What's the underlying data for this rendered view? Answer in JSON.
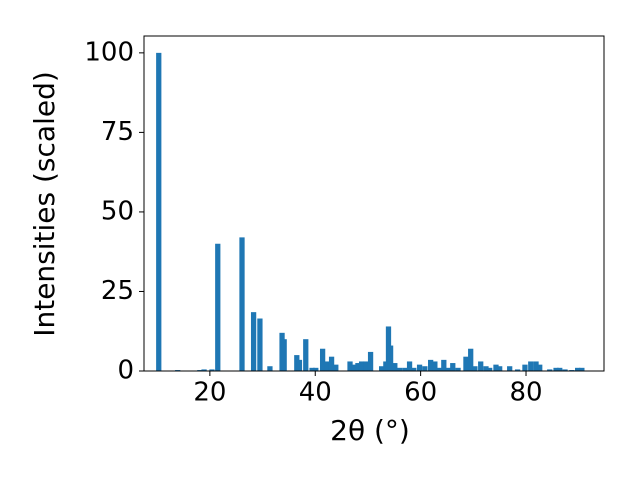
{
  "chart_data": {
    "type": "bar",
    "x_label": "2θ (°)",
    "y_label": "Intensities (scaled)",
    "x": [
      10.3,
      13.9,
      18.1,
      18.9,
      20.4,
      21.5,
      26.1,
      28.3,
      29.5,
      31.4,
      33.7,
      34.1,
      36.5,
      37.0,
      38.2,
      39.4,
      40.1,
      41.4,
      42.2,
      43.1,
      43.9,
      46.6,
      47.3,
      48.1,
      48.8,
      49.6,
      50.5,
      52.6,
      53.4,
      53.9,
      54.3,
      55.1,
      56.0,
      57.0,
      57.9,
      58.7,
      59.8,
      60.8,
      61.9,
      62.7,
      63.6,
      64.4,
      65.2,
      66.1,
      67.1,
      68.6,
      69.5,
      70.3,
      71.4,
      72.4,
      73.1,
      74.3,
      75.0,
      76.9,
      78.4,
      79.8,
      80.9,
      81.9,
      82.6,
      84.5,
      85.7,
      86.4,
      87.4,
      88.7,
      89.8,
      90.6
    ],
    "values": [
      100,
      0.3,
      0.3,
      0.5,
      0.5,
      40,
      42,
      18.5,
      16.5,
      1.5,
      12,
      10,
      5,
      3.5,
      10,
      1,
      1,
      7,
      3,
      4.5,
      2,
      3,
      2,
      2.5,
      3,
      3,
      6,
      1.5,
      3,
      14,
      8,
      2.5,
      1,
      1,
      3,
      1,
      2,
      1.5,
      3.5,
      3,
      1,
      3.5,
      1,
      2.5,
      1,
      4.5,
      7,
      1.5,
      3,
      1.5,
      1,
      2,
      1.5,
      1.5,
      0.5,
      2,
      3,
      3,
      2,
      0.5,
      1,
      1,
      0.5,
      0.3,
      1,
      1
    ],
    "color": "#1f77b4",
    "xlim": [
      7.5,
      94.8
    ],
    "ylim": [
      0,
      105.3
    ],
    "xticks": [
      20,
      40,
      60,
      80
    ],
    "yticks": [
      0,
      25,
      50,
      75,
      100
    ],
    "grid": false
  }
}
